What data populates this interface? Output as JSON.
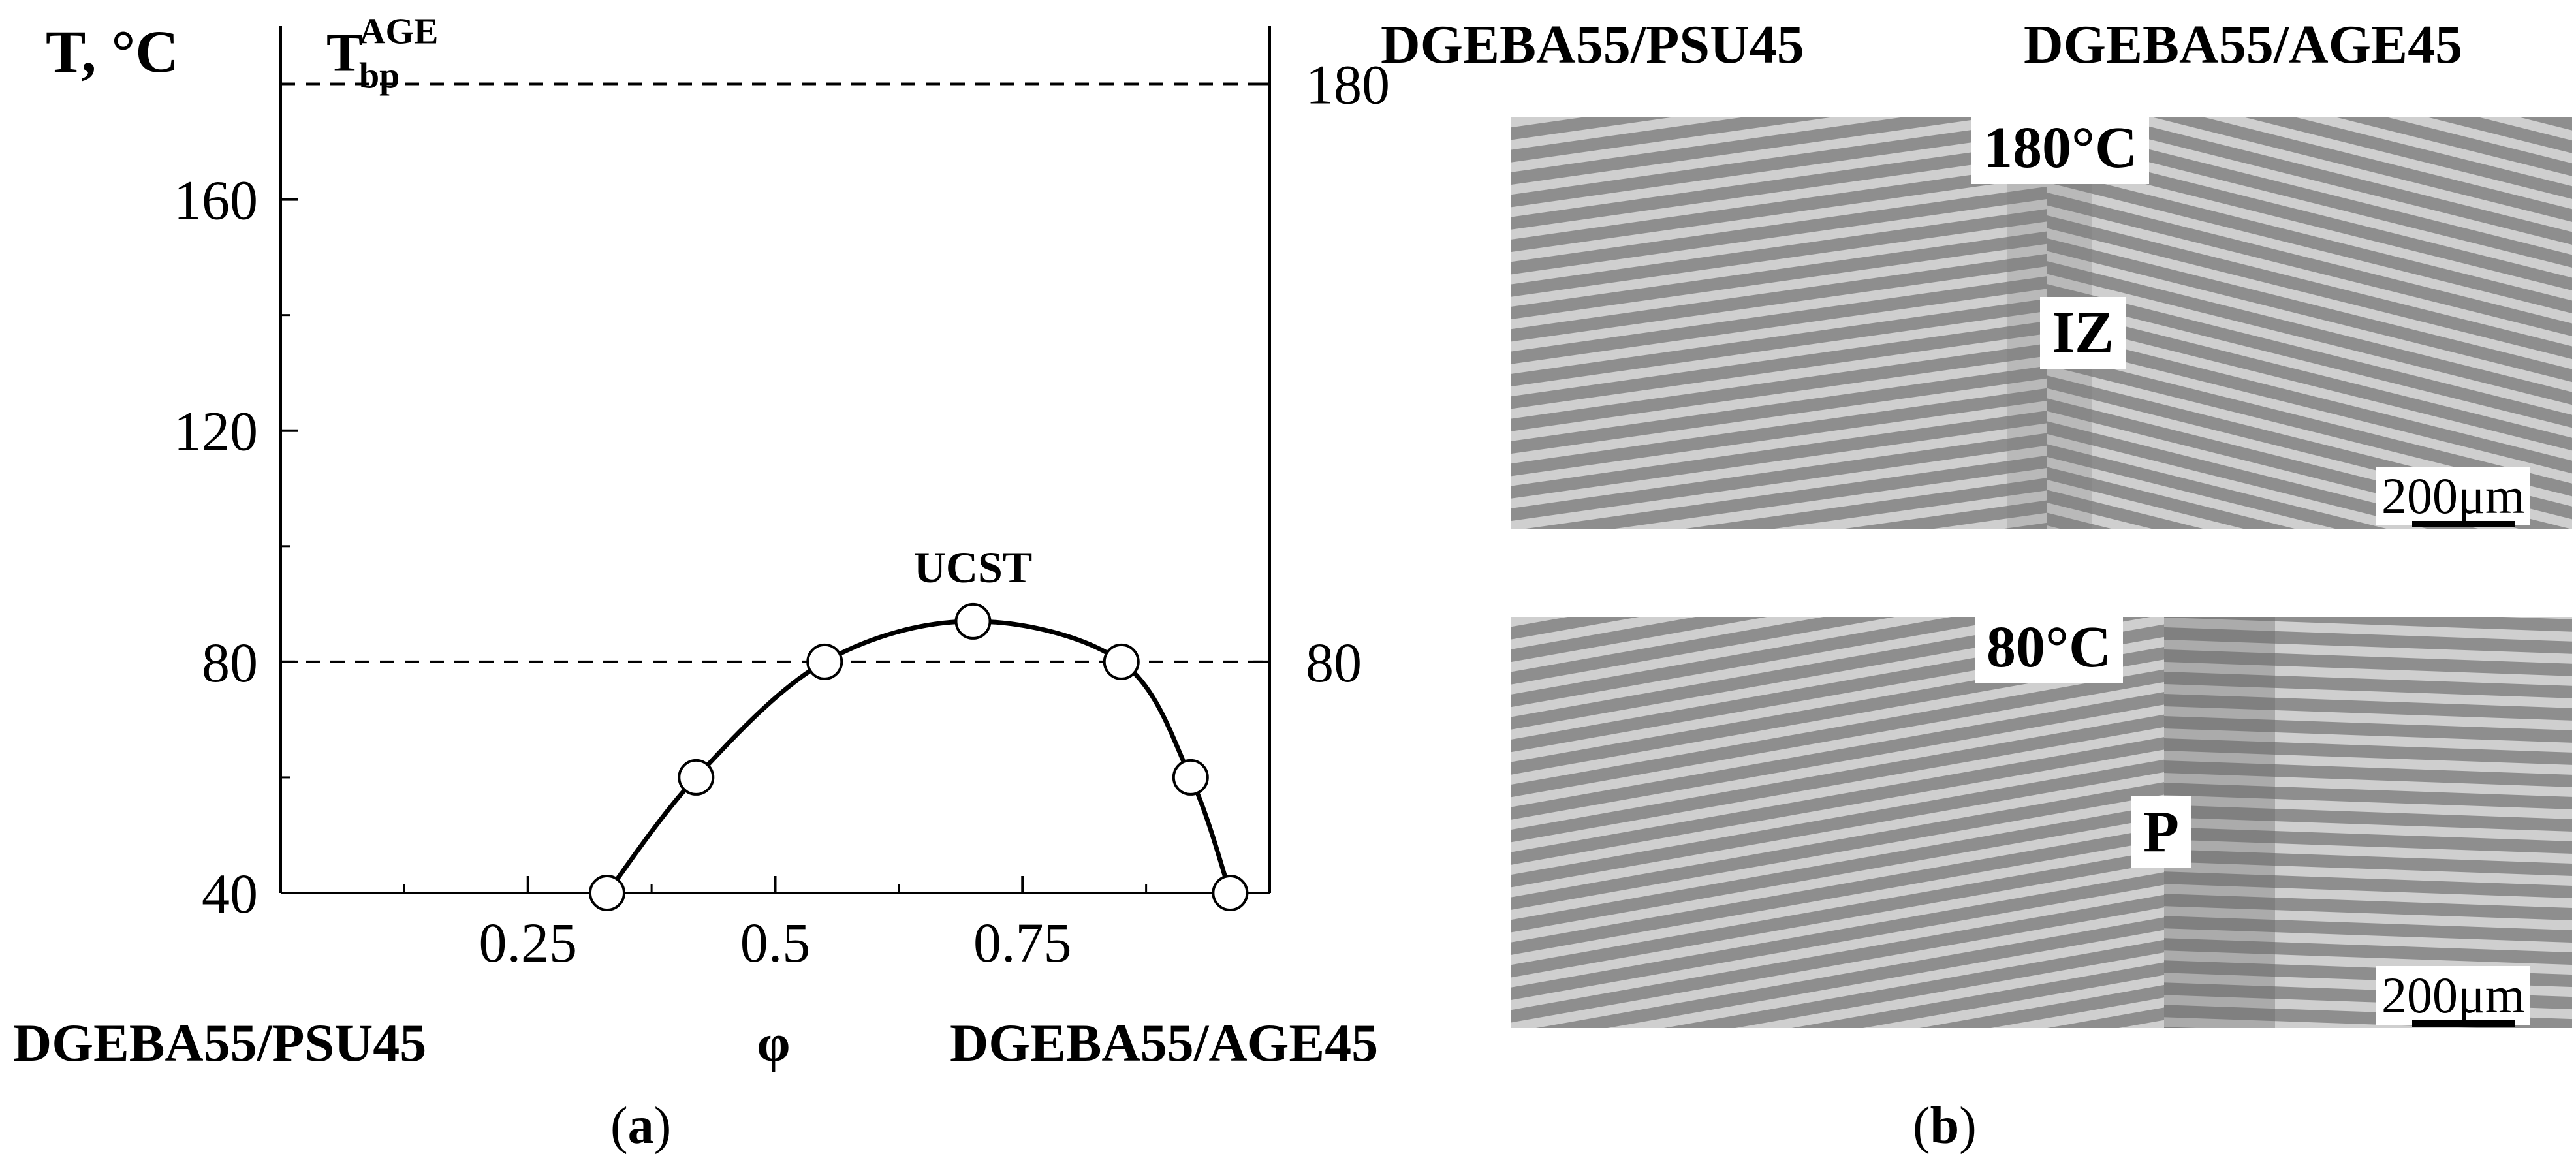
{
  "chart_data": {
    "type": "scatter",
    "title": "",
    "xlabel": "φ",
    "ylabel": "T, °C",
    "xlim": [
      0,
      1
    ],
    "ylim": [
      40,
      190
    ],
    "x_ticks": [
      "0.25",
      "0.5",
      "0.75"
    ],
    "x_tick_values": [
      0.25,
      0.5,
      0.75
    ],
    "y_ticks": [
      "40",
      "80",
      "120",
      "160"
    ],
    "y_tick_values": [
      40,
      80,
      120,
      160
    ],
    "right_ticks": [
      "80",
      "180"
    ],
    "right_tick_values": [
      80,
      180
    ],
    "x_left_label": "DGEBA55/PSU45",
    "x_right_label": "DGEBA55/AGE45",
    "series": [
      {
        "marker": "open-circle",
        "x": [
          0.33,
          0.42,
          0.55,
          0.7,
          0.85,
          0.92,
          0.96
        ],
        "y": [
          40,
          60,
          80,
          87,
          80,
          60,
          40
        ]
      }
    ],
    "curve": {
      "x": [
        0.33,
        0.42,
        0.55,
        0.7,
        0.85,
        0.92,
        0.96
      ],
      "y": [
        40,
        60,
        80,
        87,
        80,
        60,
        40
      ]
    },
    "hlines": [
      {
        "y": 180,
        "label_main": "T",
        "label_sub": "bp",
        "label_sup": "AGE"
      },
      {
        "y": 80
      }
    ],
    "annotation": {
      "text": "UCST",
      "x": 0.7,
      "y": 87
    },
    "grid": false,
    "line_color": "#000000"
  },
  "panel_b": {
    "title_left": "DGEBA55/PSU45",
    "title_right": "DGEBA55/AGE45",
    "images": [
      {
        "temp_label": "180°C",
        "zone_label": "IZ",
        "scale_label": "200μm"
      },
      {
        "temp_label": "80°C",
        "zone_label": "P",
        "scale_label": "200μm"
      }
    ]
  },
  "captions": {
    "a": "a",
    "b": "b"
  }
}
